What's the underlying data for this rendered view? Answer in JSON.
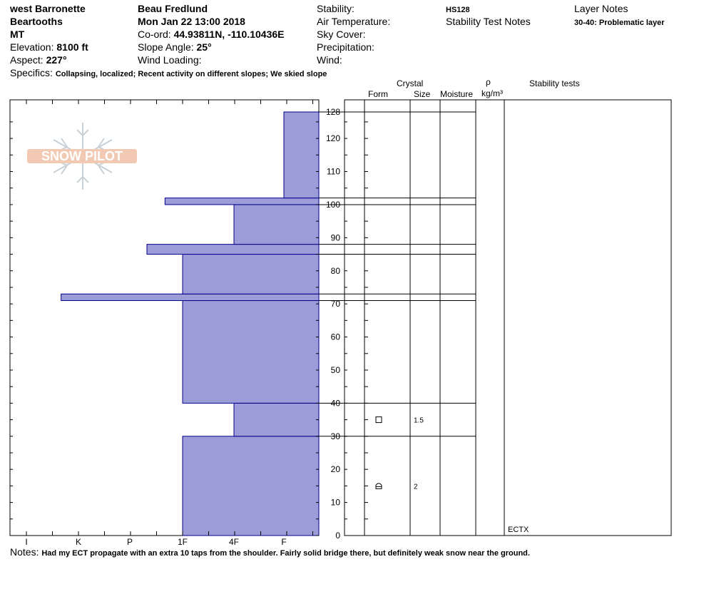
{
  "header": {
    "location": "west Barronette",
    "range": "Beartooths",
    "state": "MT",
    "elevation_label": "Elevation:",
    "elevation": "8100 ft",
    "aspect_label": "Aspect:",
    "aspect": "227°",
    "observer": "Beau  Fredlund",
    "datetime": "Mon Jan 22 13:00 2018",
    "coord_label": "Co-ord:",
    "coord": "44.93811N, -110.10436E",
    "slope_label": "Slope Angle:",
    "slope": "25°",
    "wind_loading_label": "Wind Loading:",
    "stability_label": "Stability:",
    "air_temp_label": "Air Temperature:",
    "sky_label": "Sky Cover:",
    "precip_label": "Precipitation:",
    "wind_label": "Wind:",
    "hs": "HS128",
    "stability_notes_label": "Stability Test Notes",
    "layer_notes_label": "Layer Notes",
    "layer_note": "30-40: Problematic layer",
    "specifics_label": "Specifics:",
    "specifics": "Collapsing, localized; Recent activity on different slopes; We skied slope"
  },
  "logo": {
    "text": "SNOW PILOT"
  },
  "columns": {
    "crystal": "Crystal",
    "form": "Form",
    "size": "Size",
    "moisture": "Moisture",
    "rho": "ρ",
    "density_unit": "kg/m³",
    "stability_tests": "Stability tests"
  },
  "stability_test": {
    "text": "ECTX"
  },
  "notes": {
    "label": "Notes:",
    "text": "Had my ECT propagate with an extra 10 taps from the shoulder.  Fairly solid bridge there, but definitely weak snow near the ground."
  },
  "colors": {
    "hardness_fill": "#9c9cd8",
    "hardness_stroke": "#00008b"
  },
  "chart_data": {
    "type": "snow_profile",
    "total_depth": 128,
    "ylim": [
      0,
      128
    ],
    "y_ticks": [
      0,
      10,
      20,
      30,
      40,
      50,
      60,
      70,
      80,
      90,
      100,
      110,
      120,
      128
    ],
    "hardness_scale": [
      "I",
      "K",
      "P",
      "1F",
      "4F",
      "F"
    ],
    "layers": [
      {
        "bottom": 0,
        "top": 30,
        "hardness": "1F"
      },
      {
        "bottom": 30,
        "top": 40,
        "hardness": "4F"
      },
      {
        "bottom": 40,
        "top": 71,
        "hardness": "1F"
      },
      {
        "bottom": 71,
        "top": 73,
        "hardness": "K+"
      },
      {
        "bottom": 73,
        "top": 85,
        "hardness": "1F"
      },
      {
        "bottom": 85,
        "top": 88,
        "hardness": "P-"
      },
      {
        "bottom": 88,
        "top": 100,
        "hardness": "4F"
      },
      {
        "bottom": 100,
        "top": 102,
        "hardness": "1F+"
      },
      {
        "bottom": 102,
        "top": 128,
        "hardness": "F"
      }
    ],
    "layer_crystals": [
      {
        "depth": 35,
        "form": "square",
        "size": "1.5"
      },
      {
        "depth": 15,
        "form": "cup",
        "size": "2"
      }
    ]
  }
}
